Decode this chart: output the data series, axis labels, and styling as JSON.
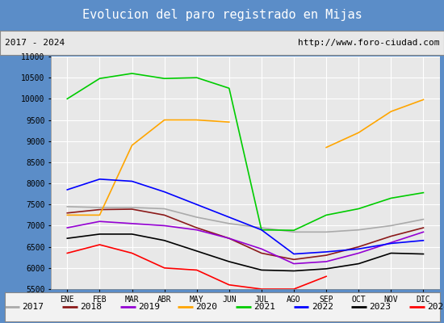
{
  "title": "Evolucion del paro registrado en Mijas",
  "subtitle_left": "2017 - 2024",
  "subtitle_right": "http://www.foro-ciudad.com",
  "ylim": [
    5500,
    11000
  ],
  "months": [
    "ENE",
    "FEB",
    "MAR",
    "ABR",
    "MAY",
    "JUN",
    "JUL",
    "AGO",
    "SEP",
    "OCT",
    "NOV",
    "DIC"
  ],
  "series": {
    "2017": {
      "color": "#aaaaaa",
      "values": [
        7450,
        7430,
        7430,
        7400,
        7200,
        7050,
        6950,
        6850,
        6850,
        6900,
        7000,
        7150
      ]
    },
    "2018": {
      "color": "#8b1a1a",
      "values": [
        7300,
        7380,
        7390,
        7250,
        6950,
        6700,
        6350,
        6200,
        6300,
        6500,
        6750,
        6950
      ]
    },
    "2019": {
      "color": "#9400d3",
      "values": [
        6950,
        7100,
        7050,
        7000,
        6900,
        6700,
        6450,
        6100,
        6150,
        6350,
        6600,
        6850
      ]
    },
    "2020": {
      "color": "#ffa500",
      "values": [
        7250,
        7250,
        8900,
        9500,
        9500,
        9450,
        null,
        null,
        8850,
        9200,
        9700,
        9980
      ]
    },
    "2021": {
      "color": "#00cc00",
      "values": [
        10000,
        10480,
        10600,
        10480,
        10500,
        10250,
        6900,
        6890,
        7250,
        7400,
        7650,
        7780
      ]
    },
    "2022": {
      "color": "#0000ff",
      "values": [
        7850,
        8100,
        8050,
        7800,
        7500,
        7200,
        6900,
        6330,
        6380,
        6450,
        6580,
        6650
      ]
    },
    "2023": {
      "color": "#000000",
      "values": [
        6700,
        6800,
        6800,
        6650,
        6400,
        6150,
        5950,
        5930,
        5980,
        6100,
        6350,
        6330
      ]
    },
    "2024": {
      "color": "#ff0000",
      "values": [
        6350,
        6550,
        6350,
        6000,
        5950,
        5600,
        5500,
        5500,
        5800,
        null,
        null,
        null
      ]
    }
  },
  "title_bg": "#4d7ebf",
  "title_color": "white",
  "subtitle_bg": "#e8e8e8",
  "plot_bg": "#e8e8e8",
  "grid_color": "white",
  "legend_bg": "#f2f2f2",
  "title_fontsize": 11,
  "subtitle_fontsize": 8,
  "tick_fontsize": 7,
  "legend_fontsize": 8
}
